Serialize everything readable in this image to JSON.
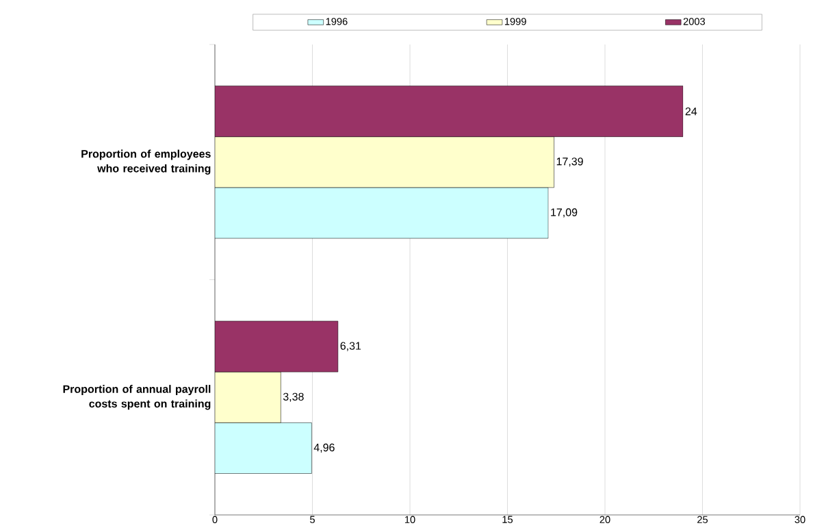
{
  "chart_data": {
    "type": "bar",
    "orientation": "horizontal",
    "categories": [
      "Proportion of employees who received training",
      "Proportion of annual payroll costs spent on training"
    ],
    "series": [
      {
        "name": "1996",
        "color": "#ccffff",
        "values": [
          17.09,
          4.96
        ],
        "value_labels": [
          "17,09",
          "4,96"
        ]
      },
      {
        "name": "1999",
        "color": "#ffffcc",
        "values": [
          17.39,
          3.38
        ],
        "value_labels": [
          "17,39",
          "3,38"
        ]
      },
      {
        "name": "2003",
        "color": "#993366",
        "values": [
          24,
          6.31
        ],
        "value_labels": [
          "24",
          "6,31"
        ]
      }
    ],
    "xlim": [
      0,
      30
    ],
    "xticks": [
      0,
      5,
      10,
      15,
      20,
      25,
      30
    ],
    "grid": "x",
    "legend": "top"
  }
}
